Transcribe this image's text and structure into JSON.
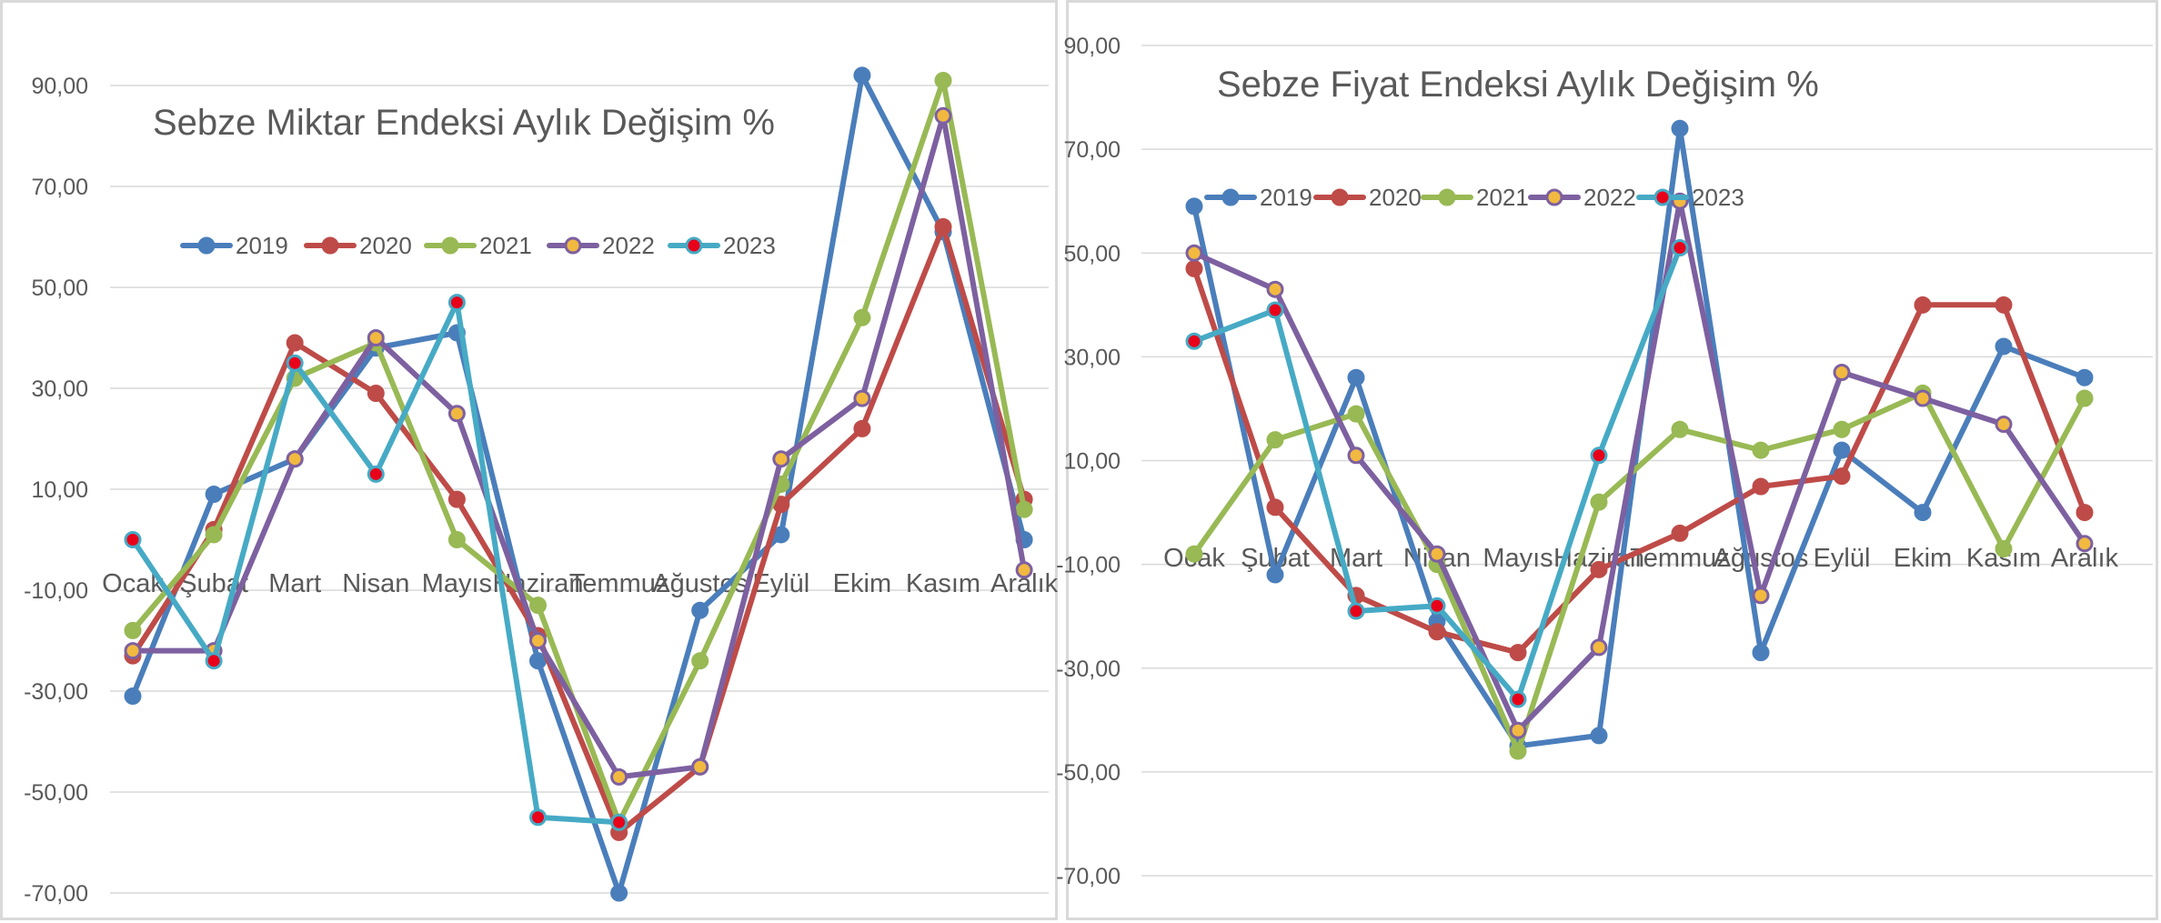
{
  "chart_data": [
    {
      "type": "line",
      "title": "Sebze Miktar Endeksi Aylık Değişim %",
      "xlabel": "",
      "ylabel": "",
      "ylim": [
        -70,
        90
      ],
      "yticks": [
        "90,00",
        "70,00",
        "50,00",
        "30,00",
        "10,00",
        "-10,00",
        "-30,00",
        "-50,00",
        "-70,00"
      ],
      "categories": [
        "Ocak",
        "Şubat",
        "Mart",
        "Nisan",
        "Mayıs",
        "Haziran",
        "Temmuz",
        "Ağustos",
        "Eylül",
        "Ekim",
        "Kasım",
        "Aralık"
      ],
      "grid": true,
      "legend_position": "top-left",
      "series": [
        {
          "name": "2019",
          "color": "#4a7ebb",
          "marker": "#4a7ebb",
          "values": [
            -31,
            9,
            16,
            38,
            41,
            -24,
            -70,
            -14,
            1,
            92,
            61,
            0
          ]
        },
        {
          "name": "2020",
          "color": "#be4b48",
          "marker": "#be4b48",
          "values": [
            -23,
            2,
            39,
            29,
            8,
            -19,
            -58,
            -45,
            7,
            22,
            62,
            8
          ]
        },
        {
          "name": "2021",
          "color": "#98b954",
          "marker": "#98b954",
          "values": [
            -18,
            1,
            32,
            39,
            0,
            -13,
            -56,
            -24,
            11,
            44,
            91,
            6
          ]
        },
        {
          "name": "2022",
          "color": "#7d60a0",
          "marker": "#f2b940",
          "values": [
            -22,
            -22,
            16,
            40,
            25,
            -20,
            -47,
            -45,
            16,
            28,
            84,
            -6
          ]
        },
        {
          "name": "2023",
          "color": "#46aac5",
          "marker": "#e8001a",
          "values": [
            0,
            -24,
            35,
            13,
            47,
            -55,
            -56,
            null,
            null,
            null,
            null,
            null
          ]
        }
      ]
    },
    {
      "type": "line",
      "title": "Sebze Fiyat Endeksi Aylık Değişim %",
      "xlabel": "",
      "ylabel": "",
      "ylim": [
        -70,
        90
      ],
      "yticks": [
        "90,00",
        "70,00",
        "50,00",
        "30,00",
        "10,00",
        "-10,00",
        "-30,00",
        "-50,00",
        "-70,00"
      ],
      "categories": [
        "Ocak",
        "Şubat",
        "Mart",
        "Nisan",
        "Mayıs",
        "Haziran",
        "Temmuz",
        "Ağustos",
        "Eylül",
        "Ekim",
        "Kasım",
        "Aralık"
      ],
      "grid": true,
      "legend_position": "top-left",
      "series": [
        {
          "name": "2019",
          "color": "#4a7ebb",
          "marker": "#4a7ebb",
          "values": [
            59,
            -12,
            26,
            -21,
            -45,
            -43,
            74,
            -27,
            12,
            0,
            32,
            26
          ]
        },
        {
          "name": "2020",
          "color": "#be4b48",
          "marker": "#be4b48",
          "values": [
            47,
            1,
            -16,
            -23,
            -27,
            -11,
            -4,
            5,
            7,
            40,
            40,
            0
          ]
        },
        {
          "name": "2021",
          "color": "#98b954",
          "marker": "#98b954",
          "values": [
            -8,
            14,
            19,
            -10,
            -46,
            2,
            16,
            12,
            16,
            23,
            -7,
            22
          ]
        },
        {
          "name": "2022",
          "color": "#7d60a0",
          "marker": "#f2b940",
          "values": [
            50,
            43,
            11,
            -8,
            -42,
            -26,
            60,
            -16,
            27,
            22,
            17,
            -6
          ]
        },
        {
          "name": "2023",
          "color": "#46aac5",
          "marker": "#e8001a",
          "values": [
            33,
            39,
            -19,
            -18,
            -36,
            11,
            51,
            null,
            null,
            null,
            null,
            null
          ]
        }
      ]
    }
  ]
}
